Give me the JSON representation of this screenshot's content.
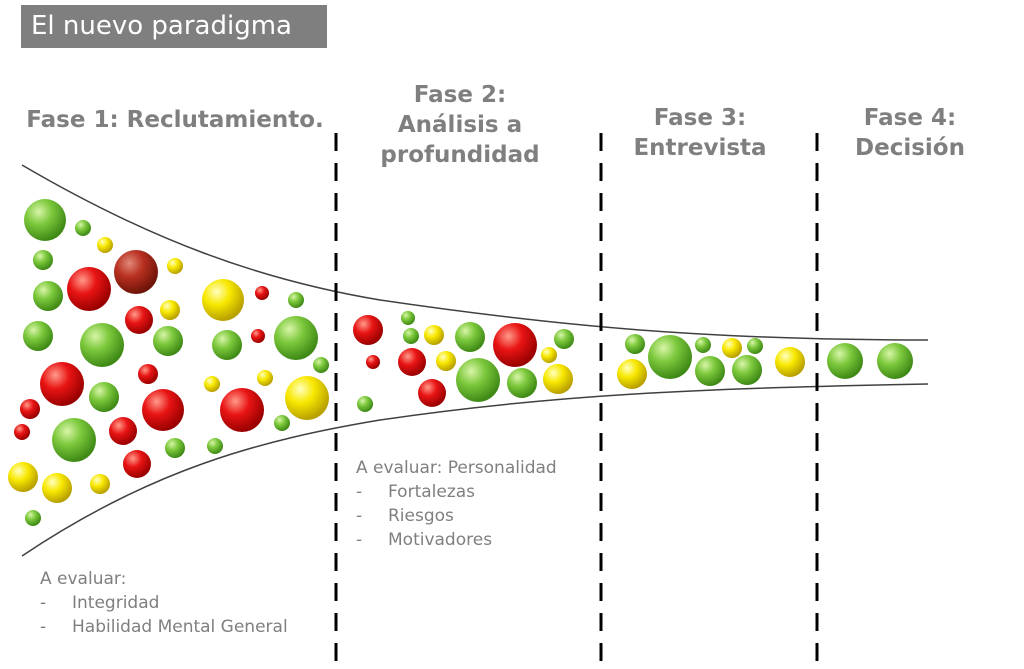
{
  "title": "El nuevo paradigma",
  "phases": [
    {
      "label": "Fase 1: Reclutamiento."
    },
    {
      "label": "Fase 2:\nAnálisis a\nprofundidad"
    },
    {
      "label": "Fase 3:\nEntrevista"
    },
    {
      "label": "Fase 4:\nDecisión"
    }
  ],
  "evaluations": {
    "phase1": {
      "heading": "A evaluar:",
      "items": [
        "Integridad",
        "Habilidad Mental General"
      ]
    },
    "phase2": {
      "heading": "A evaluar: Personalidad",
      "items": [
        "Fortalezas",
        "Riesgos",
        "Motivadores"
      ]
    }
  },
  "bullet": "-",
  "colors": {
    "title_bg": "#7f7f7f",
    "text": "#7f7f7f",
    "green": "#6ab82e",
    "red": "#e01010",
    "yellow": "#f5e000",
    "darkred": "#b83020"
  }
}
